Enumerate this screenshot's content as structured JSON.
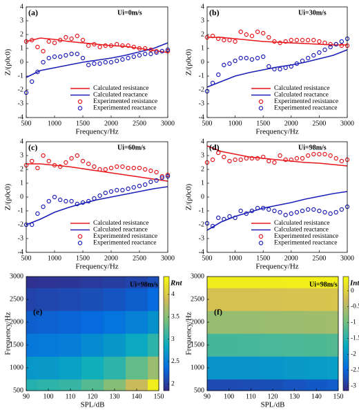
{
  "chart_data": [
    {
      "type": "line",
      "label": "(a)",
      "annotation": "Ui=0m/s",
      "x_label": "Frequency/Hz",
      "y_label": "Z/(ρ0c0)",
      "xlim": [
        500,
        3000
      ],
      "xticks": [
        500,
        1000,
        1500,
        2000,
        2500,
        3000
      ],
      "ylim": [
        -4,
        4
      ],
      "yticks": [
        -4,
        -3,
        -2,
        -1,
        0,
        1,
        2,
        3,
        4
      ],
      "series": [
        {
          "name": "Calculated resistance",
          "color": "#e8161b",
          "kind": "line",
          "x": [
            500,
            750,
            1000,
            1250,
            1500,
            1750,
            2000,
            2250,
            2500,
            2750,
            3000
          ],
          "values": [
            1.5,
            1.75,
            1.65,
            1.5,
            1.4,
            1.3,
            1.2,
            1.15,
            1.0,
            0.85,
            0.7
          ]
        },
        {
          "name": "Calculated reactance",
          "color": "#1c1fb8",
          "kind": "line",
          "x": [
            500,
            750,
            1000,
            1250,
            1500,
            1750,
            2000,
            2250,
            2500,
            2750,
            3000
          ],
          "values": [
            -1.1,
            -0.6,
            -0.4,
            -0.2,
            0.0,
            0.15,
            0.3,
            0.5,
            0.75,
            1.0,
            1.4
          ]
        },
        {
          "name": "Experimented resistance",
          "color": "#e8161b",
          "kind": "scatter",
          "x": [
            500,
            600,
            700,
            800,
            900,
            1000,
            1100,
            1200,
            1300,
            1400,
            1500,
            1600,
            1700,
            1800,
            1900,
            2000,
            2100,
            2200,
            2300,
            2400,
            2500,
            2600,
            2700,
            2800,
            2900,
            3000
          ],
          "values": [
            1.5,
            1.6,
            1.1,
            0.8,
            1.5,
            1.4,
            1.6,
            1.8,
            1.7,
            1.9,
            1.6,
            1.2,
            1.3,
            1.1,
            1.2,
            1.2,
            1.3,
            1.2,
            1.2,
            1.1,
            1.0,
            1.0,
            0.9,
            0.8,
            0.8,
            0.8
          ]
        },
        {
          "name": "Experimented reactance",
          "color": "#1c1fb8",
          "kind": "scatter",
          "x": [
            500,
            600,
            700,
            800,
            900,
            1000,
            1100,
            1200,
            1300,
            1400,
            1500,
            1600,
            1700,
            1800,
            1900,
            2000,
            2100,
            2200,
            2300,
            2400,
            2500,
            2600,
            2700,
            2800,
            2900,
            3000
          ],
          "values": [
            -2.2,
            -1.4,
            -0.7,
            0.0,
            0.3,
            0.4,
            0.4,
            0.5,
            0.6,
            0.6,
            0.3,
            -0.2,
            -0.1,
            -0.1,
            0.0,
            0.0,
            0.1,
            0.2,
            0.3,
            0.4,
            0.5,
            0.6,
            0.6,
            0.7,
            0.8,
            0.9
          ]
        }
      ]
    },
    {
      "type": "line",
      "label": "(b)",
      "annotation": "Ui=30m/s",
      "x_label": "Frequency/Hz",
      "y_label": "Z/(ρ0c0)",
      "xlim": [
        500,
        3000
      ],
      "xticks": [
        500,
        1000,
        1500,
        2000,
        2500,
        3000
      ],
      "ylim": [
        -4,
        4
      ],
      "yticks": [
        -4,
        -3,
        -2,
        -1,
        0,
        1,
        2,
        3,
        4
      ],
      "series": [
        {
          "name": "Calculated resistance",
          "color": "#e8161b",
          "kind": "line",
          "x": [
            500,
            750,
            1000,
            1250,
            1500,
            1750,
            2000,
            2250,
            2500,
            2750,
            3000
          ],
          "values": [
            1.8,
            1.8,
            1.7,
            1.6,
            1.5,
            1.45,
            1.4,
            1.35,
            1.3,
            1.25,
            1.25
          ]
        },
        {
          "name": "Calculated reactance",
          "color": "#1c1fb8",
          "kind": "line",
          "x": [
            500,
            750,
            1000,
            1250,
            1500,
            1750,
            2000,
            2250,
            2500,
            2750,
            3000
          ],
          "values": [
            -1.8,
            -1.4,
            -1.0,
            -0.75,
            -0.55,
            -0.35,
            -0.2,
            0.0,
            0.25,
            0.5,
            0.9
          ]
        },
        {
          "name": "Experimented resistance",
          "color": "#e8161b",
          "kind": "scatter",
          "x": [
            500,
            600,
            700,
            800,
            900,
            1000,
            1100,
            1200,
            1300,
            1400,
            1500,
            1600,
            1700,
            1800,
            1900,
            2000,
            2100,
            2200,
            2300,
            2400,
            2500,
            2600,
            2700,
            2800,
            2900,
            3000
          ],
          "values": [
            1.8,
            1.9,
            1.7,
            1.6,
            1.6,
            1.5,
            2.2,
            2.0,
            1.9,
            2.2,
            2.1,
            1.8,
            1.5,
            1.4,
            1.5,
            1.6,
            1.6,
            1.6,
            1.6,
            1.6,
            1.5,
            1.4,
            1.3,
            1.3,
            1.2,
            1.2
          ]
        },
        {
          "name": "Experimented reactance",
          "color": "#1c1fb8",
          "kind": "scatter",
          "x": [
            500,
            600,
            700,
            800,
            900,
            1000,
            1100,
            1200,
            1300,
            1400,
            1500,
            1600,
            1700,
            1800,
            1900,
            2000,
            2100,
            2200,
            2300,
            2400,
            2500,
            2600,
            2700,
            2800,
            2900,
            3000
          ],
          "values": [
            -2.1,
            -1.5,
            -0.9,
            -0.2,
            -0.1,
            0.1,
            0.3,
            0.3,
            0.2,
            0.3,
            0.4,
            -0.3,
            -0.5,
            -0.5,
            -0.4,
            -0.3,
            -0.1,
            0.1,
            0.3,
            0.5,
            0.7,
            0.9,
            1.1,
            1.3,
            1.5,
            1.7
          ]
        }
      ]
    },
    {
      "type": "line",
      "label": "(c)",
      "annotation": "Ui=60m/s",
      "x_label": "Frequency/Hz",
      "y_label": "Z/(ρ0c0)",
      "xlim": [
        500,
        3000
      ],
      "xticks": [
        500,
        1000,
        1500,
        2000,
        2500,
        3000
      ],
      "ylim": [
        -4,
        4
      ],
      "yticks": [
        -4,
        -3,
        -2,
        -1,
        0,
        1,
        2,
        3,
        4
      ],
      "series": [
        {
          "name": "Calculated resistance",
          "color": "#e8161b",
          "kind": "line",
          "x": [
            500,
            750,
            1000,
            1250,
            1500,
            1750,
            2000,
            2250,
            2500,
            2750,
            3000
          ],
          "values": [
            2.4,
            2.4,
            2.3,
            2.2,
            2.05,
            1.9,
            1.75,
            1.6,
            1.45,
            1.3,
            1.15
          ]
        },
        {
          "name": "Calculated reactance",
          "color": "#1c1fb8",
          "kind": "line",
          "x": [
            500,
            750,
            1000,
            1250,
            1500,
            1750,
            2000,
            2250,
            2500,
            2750,
            3000
          ],
          "values": [
            -2.0,
            -1.6,
            -1.1,
            -0.75,
            -0.45,
            -0.2,
            0.0,
            0.2,
            0.4,
            0.6,
            0.75
          ]
        },
        {
          "name": "Experimented resistance",
          "color": "#e8161b",
          "kind": "scatter",
          "x": [
            500,
            600,
            700,
            800,
            900,
            1000,
            1100,
            1200,
            1300,
            1400,
            1500,
            1600,
            1700,
            1800,
            1900,
            2000,
            2100,
            2200,
            2300,
            2400,
            2500,
            2600,
            2700,
            2800,
            2900,
            3000
          ],
          "values": [
            2.3,
            2.6,
            2.1,
            3.0,
            2.6,
            2.3,
            2.2,
            2.5,
            2.8,
            3.0,
            2.6,
            2.4,
            2.2,
            2.0,
            2.0,
            2.1,
            2.2,
            2.2,
            2.1,
            2.1,
            2.1,
            2.0,
            1.9,
            1.8,
            1.5,
            1.6
          ]
        },
        {
          "name": "Experimented reactance",
          "color": "#1c1fb8",
          "kind": "scatter",
          "x": [
            500,
            600,
            700,
            800,
            900,
            1000,
            1100,
            1200,
            1300,
            1400,
            1500,
            1600,
            1700,
            1800,
            1900,
            2000,
            2100,
            2200,
            2300,
            2400,
            2500,
            2600,
            2700,
            2800,
            2900,
            3000
          ],
          "values": [
            -2.0,
            -2.0,
            -1.2,
            -0.7,
            -0.3,
            0.0,
            -0.2,
            -0.3,
            -0.3,
            -0.5,
            -0.4,
            -0.3,
            -0.1,
            0.1,
            0.3,
            0.4,
            0.5,
            0.5,
            0.6,
            0.7,
            0.8,
            0.9,
            1.1,
            1.2,
            1.4,
            1.5
          ]
        }
      ]
    },
    {
      "type": "line",
      "label": "(d)",
      "annotation": "Ui=98m/s",
      "x_label": "Frequency/Hz",
      "y_label": "Z/(ρ0c0)",
      "xlim": [
        500,
        3000
      ],
      "xticks": [
        500,
        1000,
        1500,
        2000,
        2500,
        3000
      ],
      "ylim": [
        -4,
        4
      ],
      "yticks": [
        -4,
        -3,
        -2,
        -1,
        0,
        1,
        2,
        3,
        4
      ],
      "series": [
        {
          "name": "Calculated resistance",
          "color": "#e8161b",
          "kind": "line",
          "x": [
            500,
            750,
            1000,
            1250,
            1500,
            1750,
            2000,
            2250,
            2500,
            2750,
            3000
          ],
          "values": [
            3.7,
            3.3,
            3.1,
            2.9,
            2.8,
            2.7,
            2.6,
            2.5,
            2.45,
            2.35,
            2.25
          ]
        },
        {
          "name": "Calculated reactance",
          "color": "#1c1fb8",
          "kind": "line",
          "x": [
            500,
            750,
            1000,
            1250,
            1500,
            1750,
            2000,
            2250,
            2500,
            2750,
            3000
          ],
          "values": [
            -2.4,
            -1.8,
            -1.4,
            -1.1,
            -0.8,
            -0.6,
            -0.4,
            -0.15,
            0.05,
            0.25,
            0.4
          ]
        },
        {
          "name": "Experimented resistance",
          "color": "#e8161b",
          "kind": "scatter",
          "x": [
            500,
            600,
            700,
            800,
            900,
            1000,
            1100,
            1200,
            1300,
            1400,
            1500,
            1600,
            1700,
            1800,
            1900,
            2000,
            2100,
            2200,
            2300,
            2400,
            2500,
            2600,
            2700,
            2800,
            2900,
            3000
          ],
          "values": [
            2.5,
            2.7,
            3.2,
            2.9,
            2.6,
            2.7,
            2.7,
            2.8,
            2.8,
            2.8,
            2.9,
            2.6,
            2.5,
            3.0,
            2.7,
            2.7,
            2.8,
            2.8,
            3.0,
            3.1,
            3.1,
            3.1,
            3.0,
            2.8,
            2.6,
            2.7
          ]
        },
        {
          "name": "Experimented reactance",
          "color": "#1c1fb8",
          "kind": "scatter",
          "x": [
            500,
            600,
            700,
            800,
            900,
            1000,
            1100,
            1200,
            1300,
            1400,
            1500,
            1600,
            1700,
            1800,
            1900,
            2000,
            2100,
            2200,
            2300,
            2400,
            2500,
            2600,
            2700,
            2800,
            2900,
            3000
          ],
          "values": [
            -1.9,
            -2.1,
            -1.5,
            -1.6,
            -1.4,
            -1.5,
            -1.0,
            -1.2,
            -1.0,
            -0.8,
            -0.8,
            -0.9,
            -1.0,
            -1.1,
            -1.3,
            -1.2,
            -1.1,
            -1.0,
            -0.9,
            -0.9,
            -1.0,
            -1.1,
            -1.2,
            -1.1,
            -0.9,
            -0.7
          ]
        }
      ]
    },
    {
      "type": "heatmap",
      "label": "(e)",
      "annotation": "Ui=98m/s",
      "x_label": "SPL/dB",
      "y_label": "Frequency/Hz",
      "colorbar_label": "Rnt",
      "colormap": "parula",
      "xlim": [
        90,
        150
      ],
      "xticks": [
        90,
        100,
        110,
        120,
        130,
        140,
        150
      ],
      "ylim": [
        500,
        3000
      ],
      "yticks": [
        500,
        1000,
        1500,
        2000,
        2500,
        3000
      ],
      "clim": [
        1.85,
        4.4
      ],
      "cticks": [
        2,
        2.5,
        3,
        3.5,
        4
      ],
      "x": [
        90,
        100,
        110,
        120,
        130,
        140,
        150
      ],
      "y": [
        500,
        1000,
        1500,
        2000,
        2500,
        3000
      ],
      "z": [
        [
          3.0,
          3.05,
          3.1,
          3.25,
          3.5,
          3.85,
          4.3
        ],
        [
          2.7,
          2.72,
          2.78,
          2.9,
          3.05,
          3.3,
          3.6
        ],
        [
          2.45,
          2.47,
          2.5,
          2.6,
          2.7,
          2.85,
          3.05
        ],
        [
          2.25,
          2.27,
          2.3,
          2.35,
          2.42,
          2.52,
          2.65
        ],
        [
          2.05,
          2.07,
          2.1,
          2.13,
          2.18,
          2.25,
          2.35
        ],
        [
          1.9,
          1.92,
          1.94,
          1.97,
          2.0,
          2.05,
          2.12
        ]
      ]
    },
    {
      "type": "heatmap",
      "label": "(f)",
      "annotation": "Ui=98m/s",
      "x_label": "SPL/dB",
      "y_label": "Frequency/Hz",
      "colorbar_label": "Int",
      "colormap": "parula",
      "xlim": [
        90,
        150
      ],
      "xticks": [
        90,
        100,
        110,
        120,
        130,
        140,
        150
      ],
      "ylim": [
        500,
        3000
      ],
      "yticks": [
        500,
        1000,
        1500,
        2000,
        2500,
        3000
      ],
      "clim": [
        -3.15,
        0.45
      ],
      "cticks": [
        -3,
        -2.5,
        -2,
        -1.5,
        -1,
        -0.5,
        0
      ],
      "x": [
        90,
        100,
        110,
        120,
        130,
        140,
        150
      ],
      "y": [
        500,
        1000,
        1500,
        2000,
        2500,
        3000
      ],
      "z": [
        [
          -2.8,
          -2.8,
          -2.78,
          -2.75,
          -2.7,
          -2.65,
          -2.6
        ],
        [
          -2.0,
          -2.0,
          -1.98,
          -1.96,
          -1.93,
          -1.9,
          -1.87
        ],
        [
          -1.3,
          -1.3,
          -1.29,
          -1.27,
          -1.25,
          -1.23,
          -1.2
        ],
        [
          -0.7,
          -0.7,
          -0.69,
          -0.68,
          -0.66,
          -0.64,
          -0.62
        ],
        [
          -0.2,
          -0.2,
          -0.2,
          -0.19,
          -0.18,
          -0.17,
          -0.16
        ],
        [
          0.3,
          0.3,
          0.3,
          0.3,
          0.31,
          0.31,
          0.32
        ]
      ]
    }
  ]
}
